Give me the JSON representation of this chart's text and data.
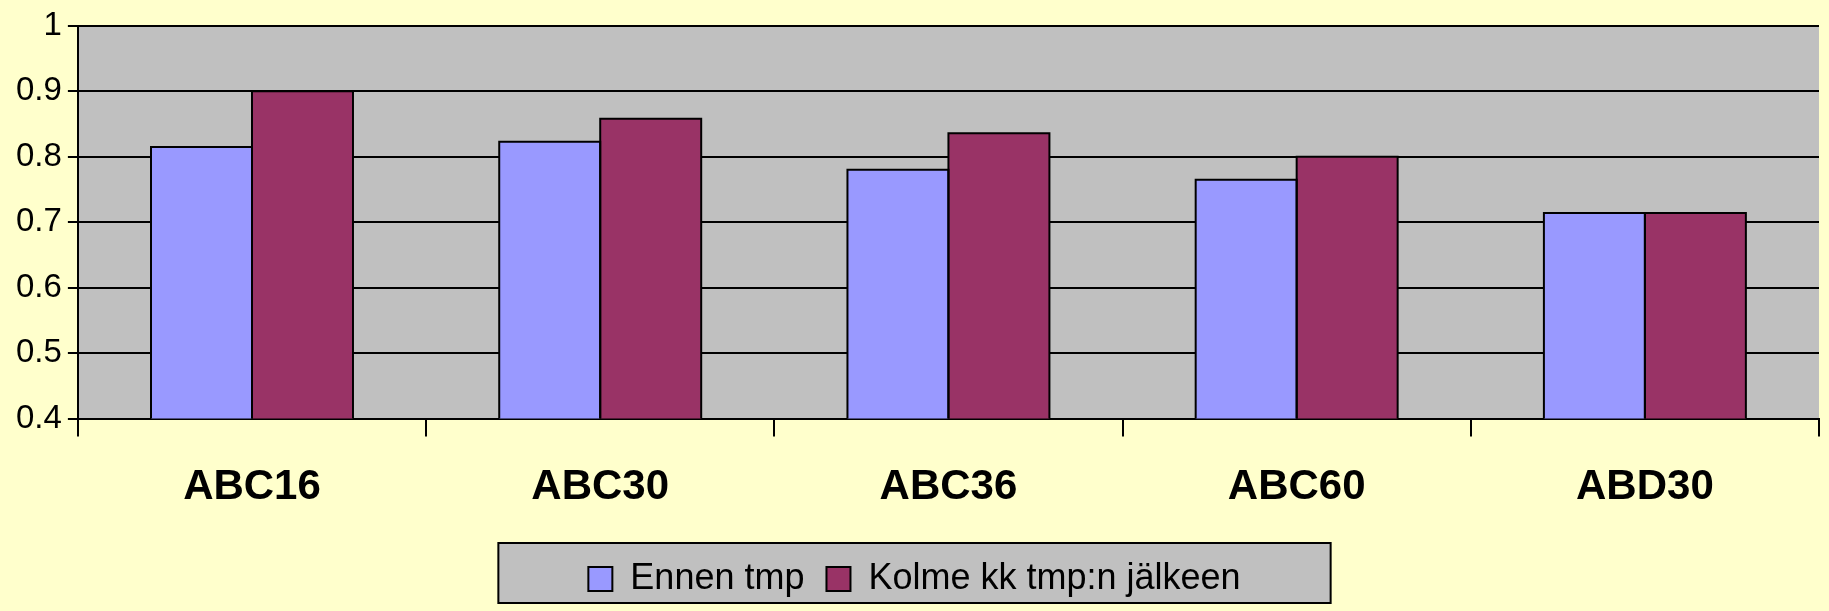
{
  "chart_data": {
    "type": "bar",
    "categories": [
      "ABC16",
      "ABC30",
      "ABC36",
      "ABC60",
      "ABD30"
    ],
    "series": [
      {
        "name": "Ennen tmp",
        "color": "#9999ff",
        "values": [
          0.815,
          0.823,
          0.78,
          0.765,
          0.714
        ]
      },
      {
        "name": "Kolme kk tmp:n jälkeen",
        "color": "#993366",
        "values": [
          0.9,
          0.858,
          0.836,
          0.8,
          0.714
        ]
      }
    ],
    "ylim": [
      0.4,
      1
    ],
    "yticks": [
      0.4,
      0.5,
      0.6,
      0.7,
      0.8,
      0.9,
      1
    ],
    "grid": "y",
    "legend": "bottom"
  }
}
